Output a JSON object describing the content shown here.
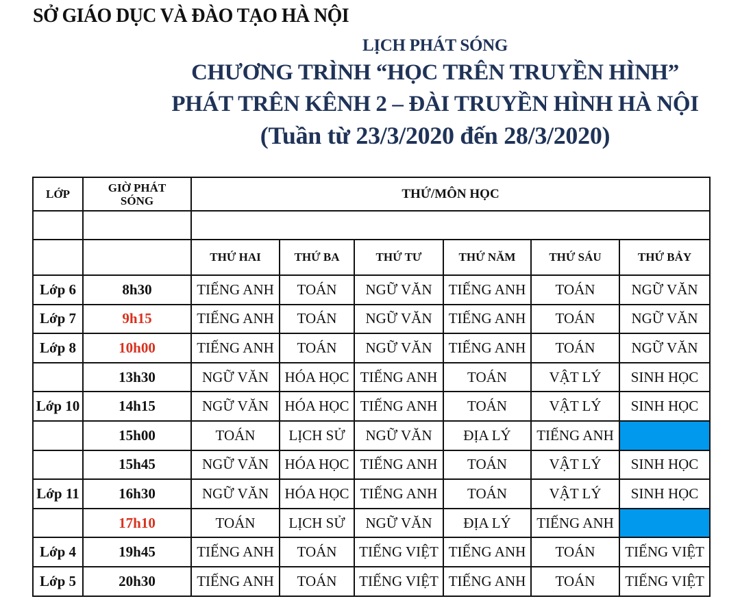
{
  "header": {
    "organization": "SỞ GIÁO DỤC VÀ ĐÀO TẠO HÀ NỘI",
    "title_line1": "LỊCH PHÁT SÓNG",
    "title_line2": "CHƯƠNG TRÌNH “HỌC TRÊN TRUYỀN HÌNH”",
    "title_line3": "PHÁT TRÊN KÊNH 2 – ĐÀI TRUYỀN HÌNH HÀ NỘI",
    "title_line4": "(Tuần từ 23/3/2020 đến 28/3/2020)"
  },
  "colors": {
    "title": "#1f3358",
    "highlight_time": "#d8321e",
    "empty_slot": "#0099ee"
  },
  "table": {
    "col_class": "LỚP",
    "col_time": "GIỜ PHÁT SÓNG",
    "col_subject": "THỨ/MÔN HỌC",
    "days": [
      "THỨ HAI",
      "THỨ BA",
      "THỨ TƯ",
      "THỨ NĂM",
      "THỨ SÁU",
      "THỨ BẢY"
    ],
    "rows": [
      {
        "class": "Lớp 6",
        "time": "8h30",
        "highlight": false,
        "subjects": [
          "TIẾNG ANH",
          "TOÁN",
          "NGỮ VĂN",
          "TIẾNG ANH",
          "TOÁN",
          "NGỮ VĂN"
        ]
      },
      {
        "class": "Lớp 7",
        "time": "9h15",
        "highlight": true,
        "subjects": [
          "TIẾNG ANH",
          "TOÁN",
          "NGỮ VĂN",
          "TIẾNG ANH",
          "TOÁN",
          "NGỮ VĂN"
        ]
      },
      {
        "class": "Lớp 8",
        "time": "10h00",
        "highlight": true,
        "subjects": [
          "TIẾNG ANH",
          "TOÁN",
          "NGỮ VĂN",
          "TIẾNG ANH",
          "TOÁN",
          "NGỮ VĂN"
        ]
      },
      {
        "class": "",
        "time": "13h30",
        "highlight": false,
        "subjects": [
          "NGỮ VĂN",
          "HÓA HỌC",
          "TIẾNG ANH",
          "TOÁN",
          "VẬT LÝ",
          "SINH HỌC"
        ]
      },
      {
        "class": "Lớp 10",
        "time": "14h15",
        "highlight": false,
        "subjects": [
          "NGỮ VĂN",
          "HÓA HỌC",
          "TIẾNG ANH",
          "TOÁN",
          "VẬT LÝ",
          "SINH HỌC"
        ]
      },
      {
        "class": "",
        "time": "15h00",
        "highlight": false,
        "subjects": [
          "TOÁN",
          "LỊCH SỬ",
          "NGỮ VĂN",
          "ĐỊA LÝ",
          "TIẾNG ANH",
          ""
        ]
      },
      {
        "class": "",
        "time": "15h45",
        "highlight": false,
        "subjects": [
          "NGỮ VĂN",
          "HÓA HỌC",
          "TIẾNG ANH",
          "TOÁN",
          "VẬT LÝ",
          "SINH HỌC"
        ]
      },
      {
        "class": "Lớp 11",
        "time": "16h30",
        "highlight": false,
        "subjects": [
          "NGỮ VĂN",
          "HÓA HỌC",
          "TIẾNG ANH",
          "TOÁN",
          "VẬT LÝ",
          "SINH HỌC"
        ]
      },
      {
        "class": "",
        "time": "17h10",
        "highlight": true,
        "subjects": [
          "TOÁN",
          "LỊCH SỬ",
          "NGỮ VĂN",
          "ĐỊA LÝ",
          "TIẾNG ANH",
          ""
        ]
      },
      {
        "class": "Lớp 4",
        "time": "19h45",
        "highlight": false,
        "subjects": [
          "TIẾNG ANH",
          "TOÁN",
          "TIẾNG VIỆT",
          "TIẾNG ANH",
          "TOÁN",
          "TIẾNG VIỆT"
        ]
      },
      {
        "class": "Lớp 5",
        "time": "20h30",
        "highlight": false,
        "subjects": [
          "TIẾNG ANH",
          "TOÁN",
          "TIẾNG VIỆT",
          "TIẾNG ANH",
          "TOÁN",
          "TIẾNG VIỆT"
        ]
      }
    ]
  }
}
